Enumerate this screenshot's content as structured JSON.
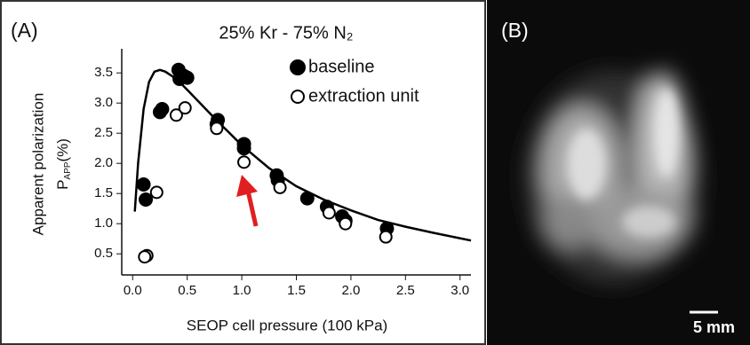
{
  "chart_data": {
    "type": "scatter",
    "panel_label": "(A)",
    "title": "25% Kr - 75% N₂",
    "xlabel": "SEOP cell pressure (100 kPa)",
    "ylabel": {
      "line1": "Apparent polarization",
      "symbol": "P",
      "subscript": "APP",
      "unit": "(%)"
    },
    "xlim": [
      -0.1,
      3.1
    ],
    "ylim": [
      0.15,
      3.9
    ],
    "xticks": [
      {
        "value": 0,
        "label": "0.0"
      },
      0.5,
      {
        "value": 1,
        "label": "1.0"
      },
      1.5,
      {
        "value": 2,
        "label": "2.0"
      },
      2.5,
      {
        "value": 3,
        "label": "3.0"
      }
    ],
    "yticks": [
      0.5,
      {
        "value": 1,
        "label": "1.0"
      },
      1.5,
      {
        "value": 2,
        "label": "2.0"
      },
      2.5,
      {
        "value": 3,
        "label": "3.0"
      },
      3.5
    ],
    "legend": "upper right",
    "series": [
      {
        "name": "baseline",
        "marker": "filled",
        "color": "#000000",
        "x": [
          0.1,
          0.12,
          0.25,
          0.27,
          0.42,
          0.43,
          0.47,
          0.5,
          0.78,
          0.77,
          1.02,
          1.02,
          1.32,
          1.33,
          1.6,
          1.78,
          1.92,
          1.95,
          2.33
        ],
        "values": [
          1.65,
          1.4,
          2.85,
          2.9,
          3.55,
          3.4,
          3.45,
          3.42,
          2.72,
          2.65,
          2.32,
          2.25,
          1.8,
          1.72,
          1.42,
          1.28,
          1.12,
          1.05,
          0.92
        ]
      },
      {
        "name": "extraction unit",
        "marker": "open",
        "color": "#000000",
        "x": [
          0.13,
          0.11,
          0.22,
          0.4,
          0.48,
          0.77,
          1.02,
          1.35,
          1.8,
          1.95,
          2.32
        ],
        "values": [
          0.47,
          0.45,
          1.52,
          2.8,
          2.92,
          2.58,
          2.02,
          1.6,
          1.18,
          1.0,
          0.78
        ]
      }
    ],
    "fit": {
      "color": "#000000",
      "x": [
        0.02,
        0.05,
        0.1,
        0.15,
        0.2,
        0.25,
        0.3,
        0.4,
        0.5,
        0.75,
        1.0,
        1.25,
        1.5,
        1.75,
        2.0,
        2.25,
        2.5,
        2.75,
        3.1
      ],
      "values": [
        1.2,
        2.0,
        2.9,
        3.35,
        3.52,
        3.55,
        3.52,
        3.4,
        3.22,
        2.75,
        2.3,
        1.92,
        1.62,
        1.4,
        1.22,
        1.06,
        0.95,
        0.85,
        0.72
      ]
    }
  },
  "image_panel": {
    "panel_label": "(B)",
    "scale_bar": "5 mm"
  }
}
